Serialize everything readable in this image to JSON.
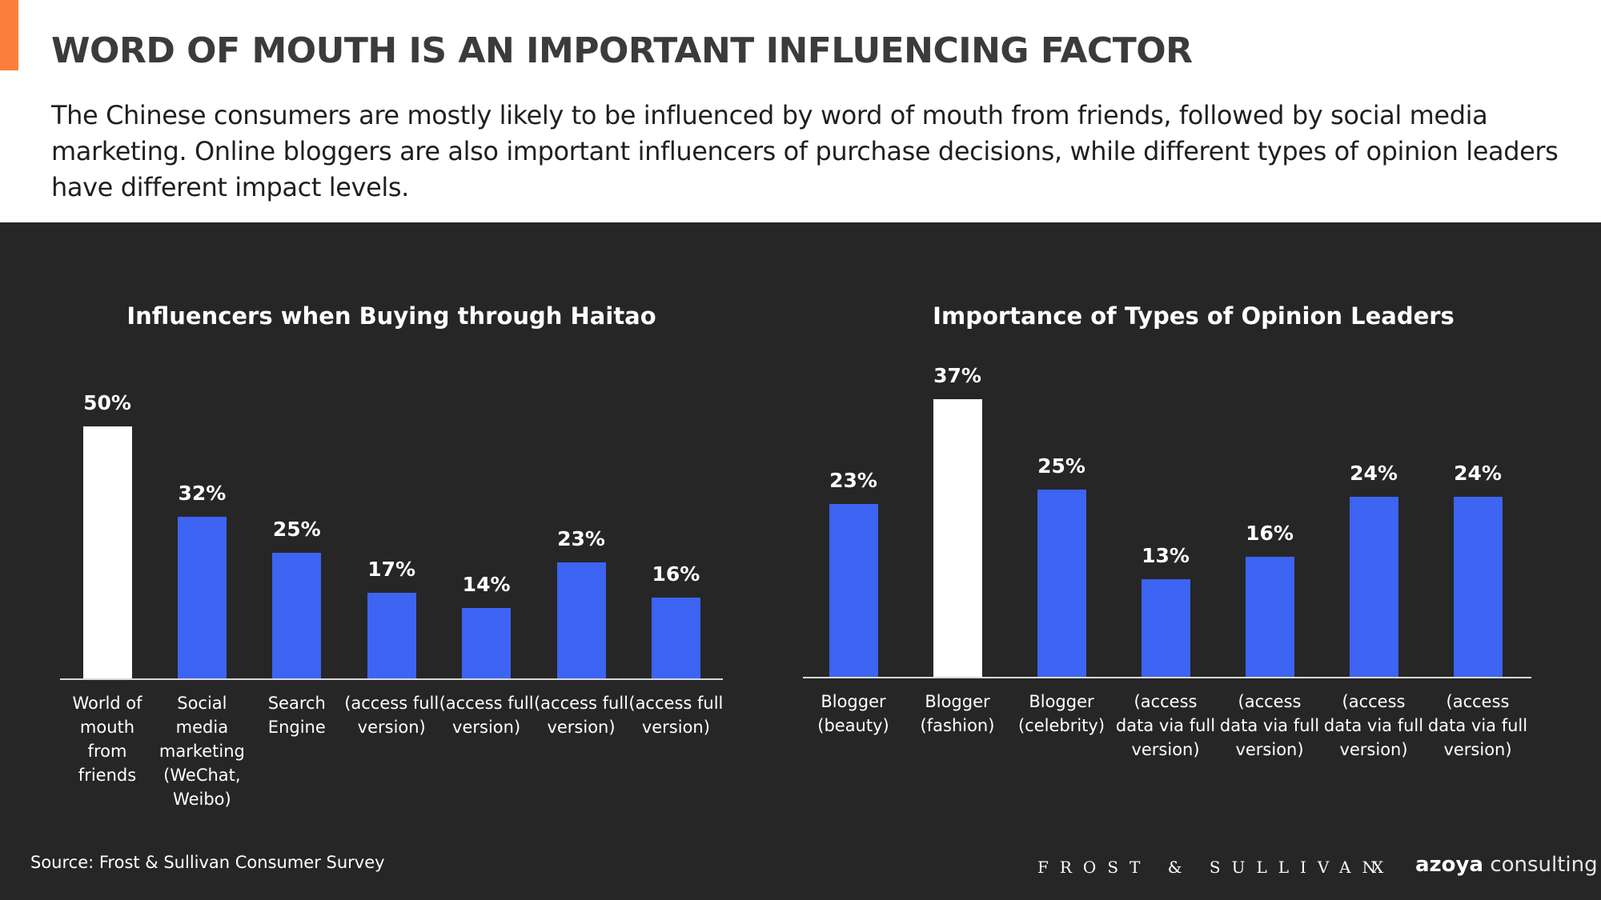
{
  "header": {
    "title": "WORD OF MOUTH IS AN IMPORTANT INFLUENCING FACTOR",
    "subtitle": "The Chinese consumers are mostly likely to be influenced by word of mouth from friends, followed by social media marketing. Online bloggers are also important influencers of purchase decisions, while different types of opinion leaders have different impact levels."
  },
  "chart_data": [
    {
      "type": "bar",
      "title": "Influencers when Buying through Haitao",
      "categories": [
        "World of mouth from friends",
        "Social media marketing (WeChat, Weibo)",
        "Search Engine",
        "(access full version)",
        "(access full version)",
        "(access full version)",
        "(access full version)"
      ],
      "values": [
        50,
        32,
        25,
        17,
        14,
        23,
        16
      ],
      "value_labels": [
        "50%",
        "32%",
        "25%",
        "17%",
        "14%",
        "23%",
        "16%"
      ],
      "colors": [
        "#ffffff",
        "#3d64f2",
        "#3d64f2",
        "#3d64f2",
        "#3d64f2",
        "#3d64f2",
        "#3d64f2"
      ]
    },
    {
      "type": "bar",
      "title": "Importance of Types of Opinion Leaders",
      "categories": [
        "Blogger (beauty)",
        "Blogger (fashion)",
        "Blogger (celebrity)",
        "(access data via full version)",
        "(access data via full version)",
        "(access data via full version)",
        "(access data via full version)"
      ],
      "values": [
        23,
        37,
        25,
        13,
        16,
        24,
        24
      ],
      "value_labels": [
        "23%",
        "37%",
        "25%",
        "13%",
        "16%",
        "24%",
        "24%"
      ],
      "colors": [
        "#3d64f2",
        "#ffffff",
        "#3d64f2",
        "#3d64f2",
        "#3d64f2",
        "#3d64f2",
        "#3d64f2"
      ]
    }
  ],
  "footer": {
    "source": "Source: Frost & Sullivan Consumer Survey",
    "logo_left": "FROST & SULLIVAN",
    "logo_x": "X",
    "logo_bold": "azoya",
    "logo_light": "consulting"
  }
}
